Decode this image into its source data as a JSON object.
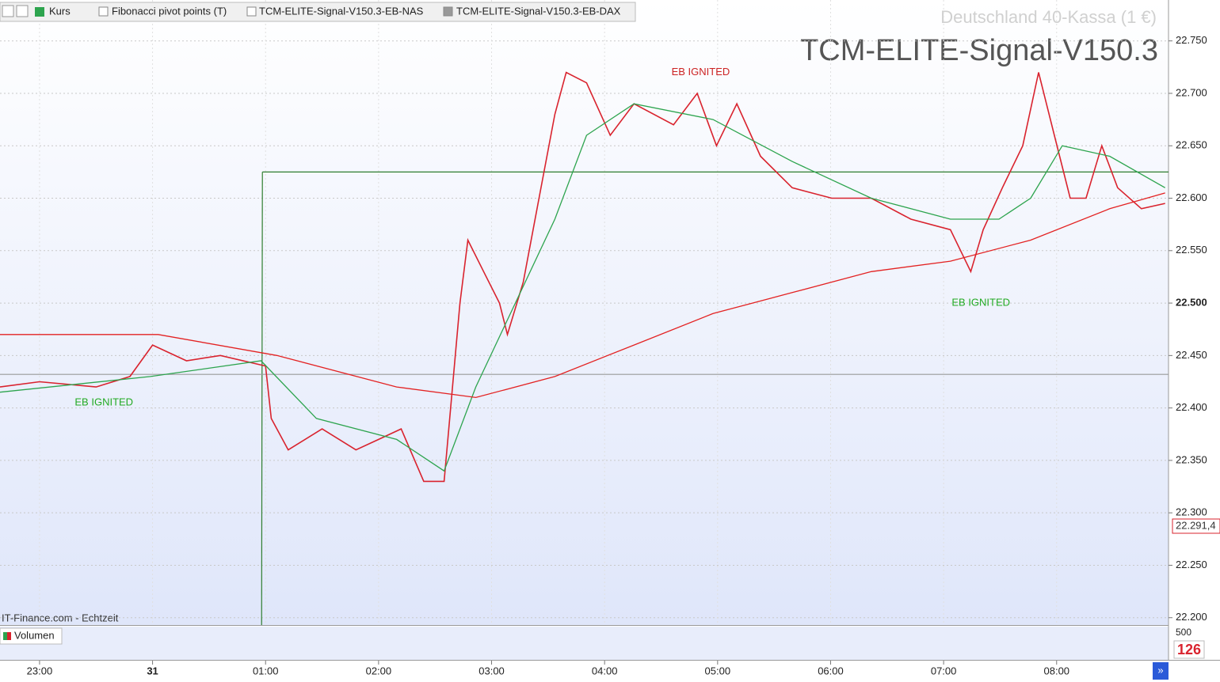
{
  "toolbar": {
    "tabs": [
      "Kurs",
      "Fibonacci pivot points (T)",
      "TCM-ELITE-Signal-V150.3-EB-NAS",
      "TCM-ELITE-Signal-V150.3-EB-DAX"
    ]
  },
  "chart_data": {
    "type": "line",
    "title": "TCM-ELITE-Signal-V150.3",
    "subtitle": "Deutschland 40-Kassa (1 €)",
    "source": "IT-Finance.com - Echtzeit",
    "price_tag": "22.291,4",
    "xlim": [
      22.65,
      32.99
    ],
    "ylim": [
      22.193,
      22.789
    ],
    "xticks": [
      {
        "value": 23,
        "label": "23:00"
      },
      {
        "value": 24,
        "label": "31"
      },
      {
        "value": 25,
        "label": "01:00"
      },
      {
        "value": 26,
        "label": "02:00"
      },
      {
        "value": 27,
        "label": "03:00"
      },
      {
        "value": 28,
        "label": "04:00"
      },
      {
        "value": 29,
        "label": "05:00"
      },
      {
        "value": 30,
        "label": "06:00"
      },
      {
        "value": 31,
        "label": "07:00"
      },
      {
        "value": 32,
        "label": "08:00"
      }
    ],
    "yticks": [
      {
        "value": 22.2,
        "label": "22.200"
      },
      {
        "value": 22.25,
        "label": "22.250"
      },
      {
        "value": 22.3,
        "label": "22.300"
      },
      {
        "value": 22.35,
        "label": "22.350"
      },
      {
        "value": 22.4,
        "label": "22.400"
      },
      {
        "value": 22.45,
        "label": "22.450"
      },
      {
        "value": 22.5,
        "label": "22.500"
      },
      {
        "value": 22.55,
        "label": "22.550"
      },
      {
        "value": 22.6,
        "label": "22.600"
      },
      {
        "value": 22.65,
        "label": "22.650"
      },
      {
        "value": 22.7,
        "label": "22.700"
      },
      {
        "value": 22.75,
        "label": "22.750"
      }
    ],
    "grid": true,
    "series": [
      {
        "color": "#d9232e",
        "x": [
          22.65,
          23.0,
          23.5,
          23.8,
          24.0,
          24.3,
          24.6,
          25.0,
          25.05,
          25.2,
          25.5,
          25.8,
          26.0,
          26.2,
          26.4,
          26.58,
          26.72,
          26.79,
          26.93,
          27.07,
          27.14,
          27.28,
          27.42,
          27.56,
          27.66,
          27.84,
          28.05,
          28.26,
          28.61,
          28.82,
          28.99,
          29.17,
          29.38,
          29.66,
          30.01,
          30.36,
          30.71,
          31.06,
          31.24,
          31.35,
          31.52,
          31.7,
          31.84,
          31.98,
          32.12,
          32.26,
          32.4,
          32.54,
          32.75,
          32.96
        ],
        "values": [
          22.42,
          22.425,
          22.42,
          22.43,
          22.46,
          22.445,
          22.45,
          22.44,
          22.39,
          22.36,
          22.38,
          22.36,
          22.37,
          22.38,
          22.33,
          22.33,
          22.5,
          22.56,
          22.53,
          22.5,
          22.47,
          22.52,
          22.6,
          22.68,
          22.72,
          22.71,
          22.66,
          22.69,
          22.67,
          22.7,
          22.65,
          22.69,
          22.64,
          22.61,
          22.6,
          22.6,
          22.58,
          22.57,
          22.53,
          22.57,
          22.61,
          22.65,
          22.72,
          22.66,
          22.6,
          22.6,
          22.65,
          22.61,
          22.59,
          22.595
        ]
      },
      {
        "color": "#2da44e",
        "x": [
          22.65,
          23.98,
          24.96,
          25.45,
          26.16,
          26.58,
          26.86,
          27.21,
          27.56,
          27.84,
          28.26,
          28.96,
          29.66,
          30.36,
          31.06,
          31.49,
          31.77,
          32.05,
          32.47,
          32.96
        ],
        "values": [
          22.415,
          22.43,
          22.445,
          22.39,
          22.37,
          22.34,
          22.42,
          22.5,
          22.58,
          22.66,
          22.69,
          22.675,
          22.635,
          22.6,
          22.58,
          22.58,
          22.6,
          22.65,
          22.64,
          22.61
        ]
      },
      {
        "color": "#e32222",
        "x": [
          22.65,
          24.05,
          25.1,
          26.16,
          26.86,
          27.56,
          28.26,
          28.96,
          29.66,
          30.36,
          31.06,
          31.77,
          32.47,
          32.96
        ],
        "values": [
          22.47,
          22.47,
          22.45,
          22.42,
          22.41,
          22.43,
          22.46,
          22.49,
          22.51,
          22.53,
          22.54,
          22.56,
          22.59,
          22.605
        ]
      }
    ],
    "levels": [
      {
        "value": 22.625,
        "color": "#2e7d2e"
      },
      {
        "value": 22.432,
        "color": "#9a9a9a"
      }
    ],
    "annotations": [
      {
        "text": "EB IGNITED",
        "x": 23.57,
        "y": 22.405,
        "color": "#22aa22"
      },
      {
        "text": "EB IGNITED",
        "x": 28.85,
        "y": 22.72,
        "color": "#cc2222"
      },
      {
        "text": "EB IGNITED",
        "x": 31.33,
        "y": 22.5,
        "color": "#22aa22"
      }
    ],
    "volume_panel": {
      "label": "Volumen",
      "tick": 500,
      "last": 126
    }
  }
}
